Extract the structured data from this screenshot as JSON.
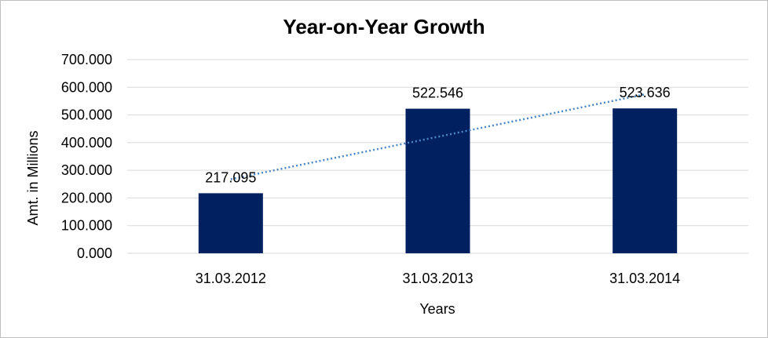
{
  "chart_data": {
    "type": "bar",
    "title": "Year-on-Year Growth",
    "xlabel": "Years",
    "ylabel": "Amt. in Millions",
    "categories": [
      "31.03.2012",
      "31.03.2013",
      "31.03.2014"
    ],
    "values": [
      217.095,
      522.546,
      523.636
    ],
    "value_labels": [
      "217.095",
      "522.546",
      "523.636"
    ],
    "ylim": [
      0,
      700
    ],
    "yticks": [
      0,
      100,
      200,
      300,
      400,
      500,
      600,
      700
    ],
    "ytick_labels": [
      "0.000",
      "100.000",
      "200.000",
      "300.000",
      "400.000",
      "500.000",
      "600.000",
      "700.000"
    ],
    "grid": true,
    "trendline": {
      "type": "linear",
      "style": "dotted"
    },
    "colors": {
      "bar": "#002060",
      "trendline": "#4a86c5",
      "grid": "#d9d9d9"
    }
  }
}
